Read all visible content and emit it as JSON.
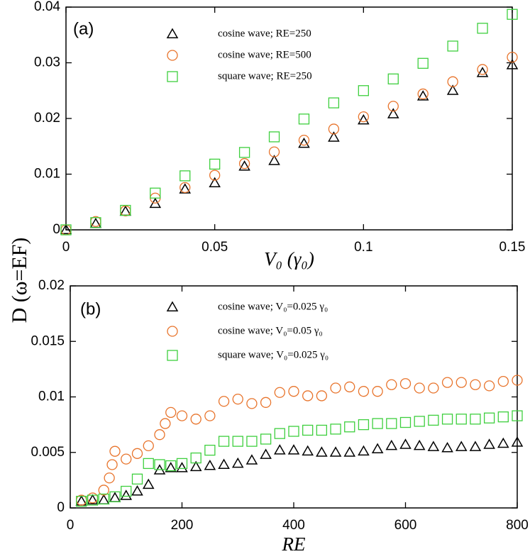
{
  "chart_data": [
    {
      "type": "scatter",
      "annotation": "(a)",
      "xlabel": "V₀ (γ₀)",
      "ylabel": "D (ω=EF)",
      "x": [
        0,
        0.01,
        0.02,
        0.03,
        0.04,
        0.05,
        0.06,
        0.07,
        0.08,
        0.09,
        0.1,
        0.11,
        0.12,
        0.13,
        0.14,
        0.15
      ],
      "xlim": [
        0,
        0.15
      ],
      "xticks": [
        0,
        0.05,
        0.1,
        0.15
      ],
      "ylim": [
        0,
        0.04
      ],
      "yticks": [
        0,
        0.01,
        0.02,
        0.03,
        0.04
      ],
      "series": [
        {
          "name": "cosine wave; RE=250",
          "marker": "triangle",
          "color": "#000000",
          "values": [
            0,
            0.0011,
            0.0033,
            0.0047,
            0.0073,
            0.0084,
            0.0114,
            0.0124,
            0.0155,
            0.0166,
            0.0197,
            0.0208,
            0.024,
            0.025,
            0.0282,
            0.0296
          ]
        },
        {
          "name": "cosine wave; RE=500",
          "marker": "circle",
          "color": "#e8742c",
          "values": [
            0,
            0.0015,
            0.0034,
            0.0057,
            0.0076,
            0.0098,
            0.0119,
            0.014,
            0.0161,
            0.0181,
            0.0203,
            0.0222,
            0.0244,
            0.0266,
            0.0288,
            0.031
          ]
        },
        {
          "name": "square wave; RE=250",
          "marker": "square",
          "color": "#3ecf3e",
          "values": [
            0,
            0.0013,
            0.0035,
            0.0066,
            0.0097,
            0.0118,
            0.0139,
            0.0167,
            0.0199,
            0.0228,
            0.025,
            0.0271,
            0.0299,
            0.033,
            0.0362,
            0.0387
          ]
        }
      ]
    },
    {
      "type": "scatter",
      "annotation": "(b)",
      "xlabel": "RE",
      "xlim": [
        0,
        800
      ],
      "xticks": [
        0,
        200,
        400,
        600,
        800
      ],
      "ylim": [
        0,
        0.02
      ],
      "yticks": [
        0,
        0.005,
        0.01,
        0.015,
        0.02
      ],
      "series": [
        {
          "name": "cosine wave; V₀=0.025 γ₀",
          "marker": "triangle",
          "color": "#000000",
          "x": [
            20,
            40,
            60,
            80,
            100,
            120,
            140,
            160,
            180,
            200,
            225,
            250,
            275,
            300,
            325,
            350,
            375,
            400,
            425,
            450,
            475,
            500,
            525,
            550,
            575,
            600,
            625,
            650,
            675,
            700,
            725,
            750,
            775,
            800
          ],
          "values": [
            0.0006,
            0.0007,
            0.0007,
            0.0009,
            0.0011,
            0.0015,
            0.0021,
            0.0034,
            0.0036,
            0.0036,
            0.0037,
            0.0038,
            0.0039,
            0.004,
            0.0043,
            0.0048,
            0.0052,
            0.0052,
            0.0051,
            0.005,
            0.005,
            0.005,
            0.0051,
            0.0053,
            0.0056,
            0.0057,
            0.0056,
            0.0055,
            0.0054,
            0.0055,
            0.0055,
            0.0057,
            0.0058,
            0.0059
          ]
        },
        {
          "name": "cosine wave; V₀=0.05 γ₀",
          "marker": "circle",
          "color": "#e8742c",
          "x": [
            20,
            40,
            60,
            70,
            75,
            80,
            100,
            120,
            140,
            160,
            170,
            180,
            200,
            225,
            250,
            275,
            300,
            325,
            350,
            375,
            400,
            425,
            450,
            475,
            500,
            525,
            550,
            575,
            600,
            625,
            650,
            675,
            700,
            725,
            750,
            775,
            800
          ],
          "values": [
            0.0007,
            0.0009,
            0.0016,
            0.0027,
            0.0039,
            0.0051,
            0.0044,
            0.0049,
            0.0056,
            0.0066,
            0.0076,
            0.0086,
            0.0083,
            0.008,
            0.0083,
            0.0096,
            0.0098,
            0.0094,
            0.0095,
            0.0104,
            0.0105,
            0.0101,
            0.0101,
            0.0108,
            0.0109,
            0.0105,
            0.0105,
            0.0111,
            0.0112,
            0.0108,
            0.0108,
            0.0113,
            0.0113,
            0.0111,
            0.011,
            0.0114,
            0.0115
          ]
        },
        {
          "name": "square wave; V₀=0.025 γ₀",
          "marker": "square",
          "color": "#3ecf3e",
          "x": [
            20,
            40,
            60,
            80,
            100,
            120,
            140,
            160,
            180,
            200,
            225,
            250,
            275,
            300,
            325,
            350,
            375,
            400,
            425,
            450,
            475,
            500,
            525,
            550,
            575,
            600,
            625,
            650,
            675,
            700,
            725,
            750,
            775,
            800
          ],
          "values": [
            0.0006,
            0.0007,
            0.0008,
            0.001,
            0.0015,
            0.0026,
            0.004,
            0.0039,
            0.0038,
            0.004,
            0.0045,
            0.0052,
            0.006,
            0.006,
            0.006,
            0.0062,
            0.0067,
            0.0069,
            0.007,
            0.007,
            0.0071,
            0.0073,
            0.0075,
            0.0076,
            0.0076,
            0.0077,
            0.0078,
            0.0079,
            0.008,
            0.008,
            0.008,
            0.0081,
            0.0082,
            0.0083
          ]
        }
      ]
    }
  ]
}
